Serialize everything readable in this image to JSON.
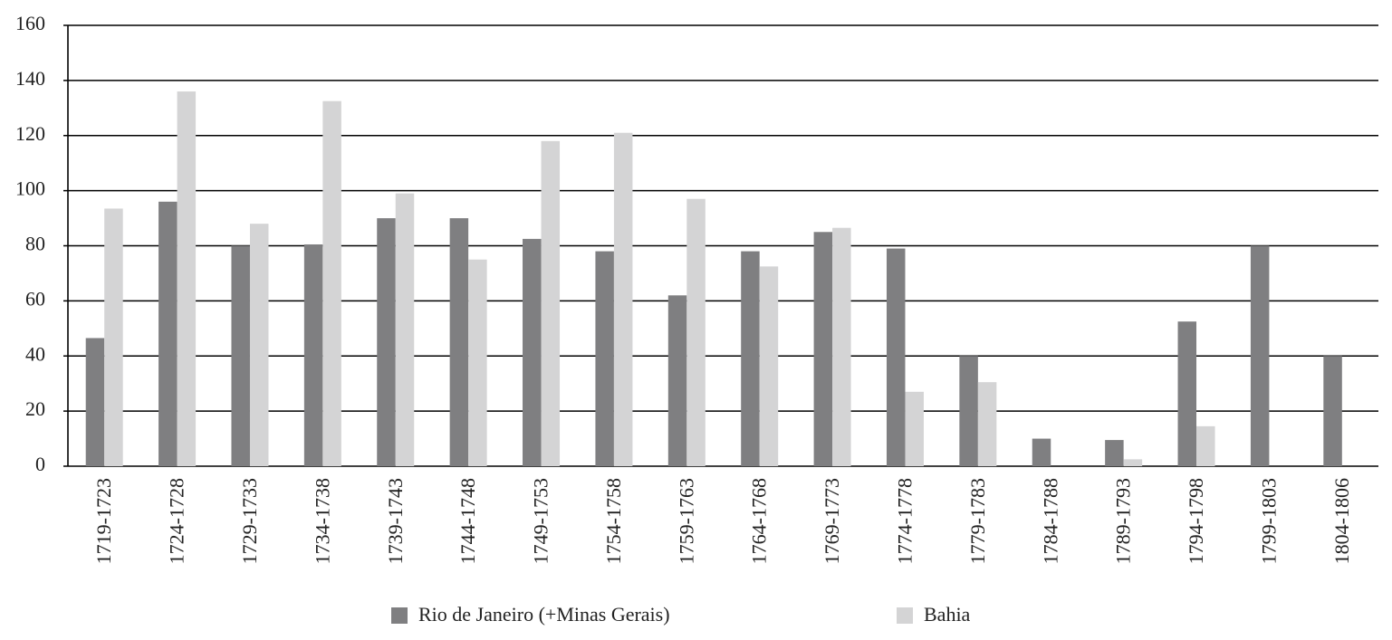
{
  "chart_data": {
    "type": "bar",
    "categories": [
      "1719-1723",
      "1724-1728",
      "1729-1733",
      "1734-1738",
      "1739-1743",
      "1744-1748",
      "1749-1753",
      "1754-1758",
      "1759-1763",
      "1764-1768",
      "1769-1773",
      "1774-1778",
      "1779-1783",
      "1784-1788",
      "1789-1793",
      "1794-1798",
      "1799-1803",
      "1804-1806"
    ],
    "series": [
      {
        "name": "Rio de Janeiro (+Minas Gerais)",
        "color": "#7f7f81",
        "values": [
          46.5,
          96,
          80,
          80.5,
          90,
          90,
          82.5,
          78,
          62,
          78,
          85,
          79,
          40,
          10,
          9.5,
          52.5,
          80,
          40
        ]
      },
      {
        "name": "Bahia",
        "color": "#d4d4d5",
        "values": [
          93.5,
          136,
          88,
          132.5,
          99,
          75,
          118,
          121,
          97,
          72.5,
          86.5,
          27,
          30.5,
          null,
          2.5,
          14.5,
          null,
          null
        ]
      }
    ],
    "ylim": [
      0,
      160
    ],
    "yticks": [
      0,
      20,
      40,
      60,
      80,
      100,
      120,
      140,
      160
    ],
    "grid": true
  }
}
